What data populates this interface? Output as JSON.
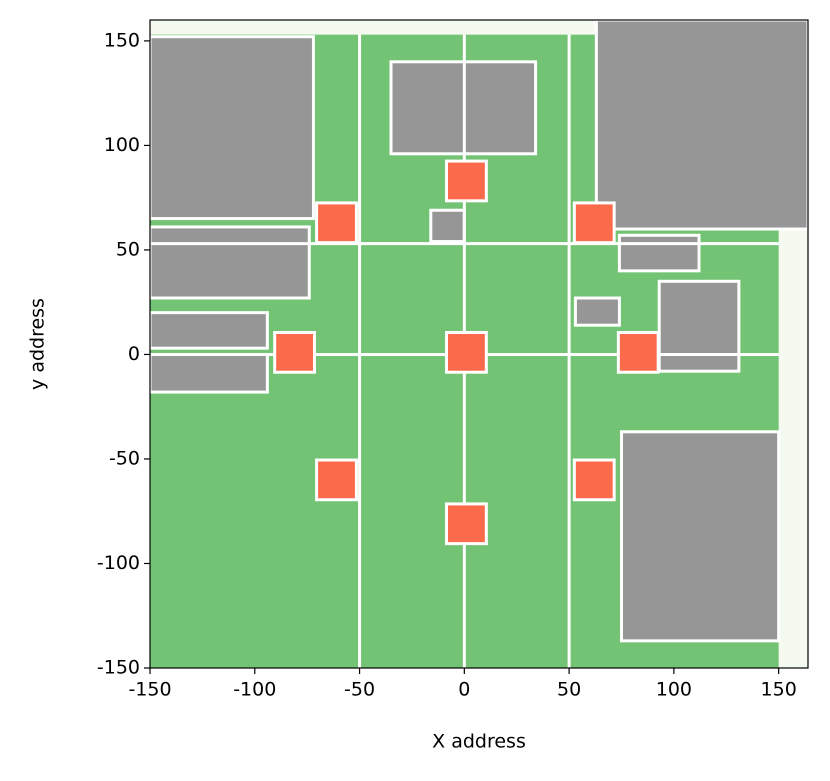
{
  "chart_data": {
    "type": "map",
    "xlabel": "X address",
    "ylabel": "y address",
    "xlim": [
      -150,
      164
    ],
    "ylim": [
      -150,
      160
    ],
    "xticks": [
      -150,
      -100,
      -50,
      0,
      50,
      100,
      150
    ],
    "yticks": [
      -150,
      -100,
      -50,
      0,
      50,
      100,
      150
    ],
    "background": "#f4faf0",
    "die": {
      "color": "#73c374",
      "x": [
        -150,
        150
      ],
      "y": [
        -150,
        153
      ]
    },
    "channels": {
      "color": "#ffffff",
      "x": [
        -50,
        0,
        50
      ],
      "y": [
        0,
        53
      ]
    },
    "blocks": {
      "color": "#969696",
      "x0": [
        -150,
        63,
        -150,
        -150,
        -150,
        -35,
        75,
        93,
        53,
        -16,
        74
      ],
      "x1": [
        -72,
        164,
        -74,
        -94,
        -94,
        34,
        150,
        131,
        74,
        0,
        112
      ],
      "y0": [
        65,
        60,
        27,
        3,
        -18,
        96,
        -137,
        -8,
        14,
        54,
        40
      ],
      "y1": [
        152,
        160,
        61,
        20,
        0,
        140,
        -37,
        35,
        27,
        69,
        57
      ]
    },
    "hubs": {
      "color": "#fb6a4a",
      "size": 19,
      "x": [
        1,
        -61,
        62,
        -81,
        1,
        83,
        -61,
        62,
        1
      ],
      "y": [
        83,
        63,
        63,
        1,
        1,
        1,
        -60,
        -60,
        -81
      ]
    }
  }
}
